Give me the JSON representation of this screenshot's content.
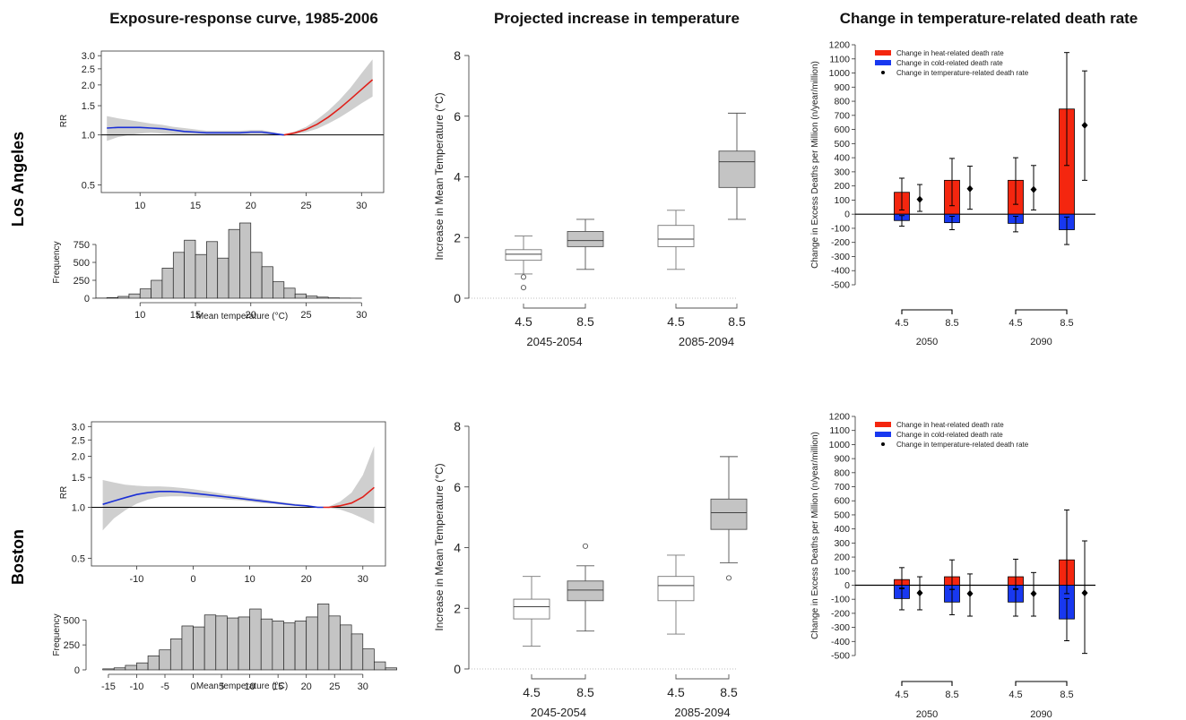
{
  "headers": {
    "exposure": "Exposure-response curve, 1985-2006",
    "projected": "Projected increase in temperature",
    "change": "Change in temperature-related death rate"
  },
  "rows": [
    "Los Angeles",
    "Boston"
  ],
  "colors": {
    "cold_curve": "#1a2fd6",
    "heat_curve": "#e0201a",
    "ci_band": "#cfcfcf",
    "box_fill": "#c4c4c4",
    "heat_bar": "#f4260f",
    "cold_bar": "#1838f0"
  },
  "chart_data": [
    {
      "id": "la_rr",
      "city": "Los Angeles",
      "type": "line",
      "ylabel": "RR",
      "ylog": true,
      "xlim": [
        6.5,
        32
      ],
      "ylim": [
        0.45,
        3.2
      ],
      "xticks": [
        10,
        15,
        20,
        25,
        30
      ],
      "yticks": [
        0.5,
        1.0,
        1.5,
        2.0,
        2.5,
        3.0
      ],
      "ytick_labels": [
        "0.5",
        "1.0",
        "1.5",
        "2.0",
        "2.5",
        "3.0"
      ],
      "reference": 1.0,
      "threshold": 23,
      "x": [
        7,
        8,
        9,
        10,
        11,
        12,
        13,
        14,
        15,
        16,
        17,
        18,
        19,
        20,
        21,
        22,
        23,
        24,
        25,
        26,
        27,
        28,
        29,
        30,
        31
      ],
      "rr": [
        1.1,
        1.11,
        1.11,
        1.11,
        1.1,
        1.09,
        1.07,
        1.05,
        1.04,
        1.03,
        1.03,
        1.03,
        1.03,
        1.04,
        1.04,
        1.02,
        1.0,
        1.03,
        1.08,
        1.16,
        1.28,
        1.44,
        1.64,
        1.88,
        2.15
      ],
      "lo": [
        0.92,
        0.97,
        1.0,
        1.02,
        1.03,
        1.02,
        1.01,
        1.0,
        1.0,
        1.0,
        1.0,
        1.0,
        1.0,
        1.01,
        1.01,
        1.0,
        1.0,
        1.01,
        1.04,
        1.09,
        1.17,
        1.27,
        1.4,
        1.55,
        1.7
      ],
      "hi": [
        1.3,
        1.26,
        1.23,
        1.2,
        1.17,
        1.15,
        1.12,
        1.1,
        1.08,
        1.06,
        1.06,
        1.06,
        1.06,
        1.07,
        1.07,
        1.04,
        1.0,
        1.05,
        1.12,
        1.24,
        1.4,
        1.62,
        1.92,
        2.35,
        2.85
      ]
    },
    {
      "id": "la_freq",
      "city": "Los Angeles",
      "type": "bar",
      "ylabel": "Frequency",
      "xlabel": "Mean temperature (°C)",
      "xlim": [
        6.5,
        32
      ],
      "ylim": [
        0,
        1000
      ],
      "xticks": [
        10,
        15,
        20,
        25,
        30
      ],
      "yticks": [
        0,
        250,
        500,
        750
      ],
      "bin_start": 6,
      "bin_width": 1,
      "counts": [
        2,
        8,
        25,
        60,
        130,
        250,
        420,
        640,
        810,
        610,
        790,
        560,
        960,
        1050,
        640,
        440,
        230,
        140,
        60,
        30,
        15,
        5,
        2,
        1,
        0,
        0
      ]
    },
    {
      "id": "la_box",
      "city": "Los Angeles",
      "type": "box",
      "ylabel": "Increase in Mean Temperature (°C)",
      "ylim": [
        0,
        8
      ],
      "yticks": [
        0,
        2,
        4,
        6,
        8
      ],
      "groups": [
        {
          "period": "2045-2054",
          "boxes": [
            {
              "scenario": "4.5",
              "min": 0.8,
              "q1": 1.25,
              "median": 1.45,
              "q3": 1.6,
              "max": 2.05,
              "outliers": [
                0.7,
                0.35
              ],
              "filled": false
            },
            {
              "scenario": "8.5",
              "min": 0.95,
              "q1": 1.7,
              "median": 1.9,
              "q3": 2.2,
              "max": 2.6,
              "outliers": [],
              "filled": true
            }
          ]
        },
        {
          "period": "2085-2094",
          "boxes": [
            {
              "scenario": "4.5",
              "min": 0.95,
              "q1": 1.7,
              "median": 1.95,
              "q3": 2.4,
              "max": 2.9,
              "outliers": [],
              "filled": false
            },
            {
              "scenario": "8.5",
              "min": 2.6,
              "q1": 3.65,
              "median": 4.5,
              "q3": 4.85,
              "max": 6.1,
              "outliers": [],
              "filled": true
            }
          ]
        }
      ]
    },
    {
      "id": "la_change",
      "city": "Los Angeles",
      "type": "bar",
      "ylabel": "Change in Excess Deaths per Million (n/year/million)",
      "ylim": [
        -500,
        1200
      ],
      "ytick_step": 100,
      "legend": [
        "Change in heat-related death rate",
        "Change in cold-related death rate",
        "Change in temperature-related death rate"
      ],
      "groups": [
        {
          "period": "2050",
          "items": [
            {
              "scenario": "4.5",
              "heat": 155,
              "heat_lo": 30,
              "heat_hi": 255,
              "cold": -45,
              "cold_lo": -85,
              "cold_hi": -10,
              "net": 105,
              "net_lo": 20,
              "net_hi": 210
            },
            {
              "scenario": "8.5",
              "heat": 240,
              "heat_lo": 60,
              "heat_hi": 395,
              "cold": -60,
              "cold_lo": -110,
              "cold_hi": -15,
              "net": 180,
              "net_lo": 35,
              "net_hi": 340
            }
          ]
        },
        {
          "period": "2090",
          "items": [
            {
              "scenario": "4.5",
              "heat": 240,
              "heat_lo": 70,
              "heat_hi": 400,
              "cold": -65,
              "cold_lo": -125,
              "cold_hi": -15,
              "net": 175,
              "net_lo": 30,
              "net_hi": 345
            },
            {
              "scenario": "8.5",
              "heat": 745,
              "heat_lo": 345,
              "heat_hi": 1145,
              "cold": -110,
              "cold_lo": -215,
              "cold_hi": -20,
              "net": 630,
              "net_lo": 240,
              "net_hi": 1015
            }
          ]
        }
      ]
    },
    {
      "id": "bos_rr",
      "city": "Boston",
      "type": "line",
      "ylabel": "RR",
      "ylog": true,
      "xlim": [
        -18,
        34
      ],
      "ylim": [
        0.45,
        3.2
      ],
      "xticks": [
        -10,
        0,
        10,
        20,
        30
      ],
      "yticks": [
        0.5,
        1.0,
        1.5,
        2.0,
        2.5,
        3.0
      ],
      "ytick_labels": [
        "0.5",
        "1.0",
        "1.5",
        "2.0",
        "2.5",
        "3.0"
      ],
      "reference": 1.0,
      "threshold": 23,
      "x": [
        -16,
        -14,
        -12,
        -10,
        -8,
        -6,
        -4,
        -2,
        0,
        2,
        4,
        6,
        8,
        10,
        12,
        14,
        16,
        18,
        20,
        22,
        23,
        24,
        26,
        28,
        30,
        32
      ],
      "rr": [
        1.04,
        1.09,
        1.14,
        1.19,
        1.22,
        1.24,
        1.24,
        1.23,
        1.21,
        1.19,
        1.17,
        1.15,
        1.13,
        1.11,
        1.09,
        1.07,
        1.05,
        1.03,
        1.02,
        1.0,
        1.0,
        1.0,
        1.02,
        1.06,
        1.15,
        1.31
      ],
      "lo": [
        0.73,
        0.86,
        0.96,
        1.05,
        1.11,
        1.15,
        1.16,
        1.16,
        1.15,
        1.14,
        1.13,
        1.11,
        1.1,
        1.08,
        1.06,
        1.05,
        1.03,
        1.02,
        1.01,
        1.0,
        1.0,
        0.99,
        0.97,
        0.92,
        0.86,
        0.8
      ],
      "hi": [
        1.45,
        1.4,
        1.36,
        1.34,
        1.33,
        1.33,
        1.32,
        1.3,
        1.28,
        1.25,
        1.22,
        1.19,
        1.17,
        1.14,
        1.12,
        1.09,
        1.07,
        1.05,
        1.03,
        1.01,
        1.0,
        1.01,
        1.08,
        1.22,
        1.55,
        2.3
      ]
    },
    {
      "id": "bos_freq",
      "city": "Boston",
      "type": "bar",
      "ylabel": "Frequency",
      "xlabel": "Mean temperature (°C)",
      "xlim": [
        -18,
        34
      ],
      "ylim": [
        0,
        700
      ],
      "xticks": [
        -15,
        -10,
        -5,
        0,
        5,
        10,
        15,
        20,
        25,
        30
      ],
      "yticks": [
        0,
        250,
        500
      ],
      "bin_start": -16,
      "bin_width": 2,
      "counts": [
        10,
        20,
        45,
        70,
        140,
        200,
        310,
        440,
        430,
        550,
        540,
        520,
        530,
        610,
        510,
        490,
        470,
        490,
        530,
        660,
        540,
        450,
        360,
        210,
        80,
        20
      ]
    },
    {
      "id": "bos_box",
      "city": "Boston",
      "type": "box",
      "ylabel": "Increase in Mean Temperature (°C)",
      "ylim": [
        0,
        8
      ],
      "yticks": [
        0,
        2,
        4,
        6,
        8
      ],
      "groups": [
        {
          "period": "2045-2054",
          "boxes": [
            {
              "scenario": "4.5",
              "min": 0.75,
              "q1": 1.65,
              "median": 2.05,
              "q3": 2.3,
              "max": 3.05,
              "outliers": [],
              "filled": false
            },
            {
              "scenario": "8.5",
              "min": 1.25,
              "q1": 2.25,
              "median": 2.6,
              "q3": 2.9,
              "max": 3.4,
              "outliers": [
                4.05
              ],
              "filled": true
            }
          ]
        },
        {
          "period": "2085-2094",
          "boxes": [
            {
              "scenario": "4.5",
              "min": 1.15,
              "q1": 2.25,
              "median": 2.75,
              "q3": 3.05,
              "max": 3.75,
              "outliers": [],
              "filled": false
            },
            {
              "scenario": "8.5",
              "min": 3.5,
              "q1": 4.6,
              "median": 5.15,
              "q3": 5.6,
              "max": 7.0,
              "outliers": [
                3.0
              ],
              "filled": true
            }
          ]
        }
      ]
    },
    {
      "id": "bos_change",
      "city": "Boston",
      "type": "bar",
      "ylabel": "Change in Excess Deaths per Million (n/year/million)",
      "ylim": [
        -500,
        1200
      ],
      "ytick_step": 100,
      "legend": [
        "Change in heat-related death rate",
        "Change in cold-related death rate",
        "Change in temperature-related death rate"
      ],
      "groups": [
        {
          "period": "2050",
          "items": [
            {
              "scenario": "4.5",
              "heat": 40,
              "heat_lo": -20,
              "heat_hi": 125,
              "cold": -95,
              "cold_lo": -175,
              "cold_hi": -25,
              "net": -55,
              "net_lo": -175,
              "net_hi": 60
            },
            {
              "scenario": "8.5",
              "heat": 60,
              "heat_lo": -30,
              "heat_hi": 180,
              "cold": -120,
              "cold_lo": -210,
              "cold_hi": -30,
              "net": -60,
              "net_lo": -220,
              "net_hi": 80
            }
          ]
        },
        {
          "period": "2090",
          "items": [
            {
              "scenario": "4.5",
              "heat": 60,
              "heat_lo": -25,
              "heat_hi": 185,
              "cold": -120,
              "cold_lo": -220,
              "cold_hi": -30,
              "net": -60,
              "net_lo": -220,
              "net_hi": 90
            },
            {
              "scenario": "8.5",
              "heat": 180,
              "heat_lo": -60,
              "heat_hi": 535,
              "cold": -240,
              "cold_lo": -395,
              "cold_hi": -95,
              "net": -55,
              "net_lo": -485,
              "net_hi": 315
            }
          ]
        }
      ]
    }
  ]
}
